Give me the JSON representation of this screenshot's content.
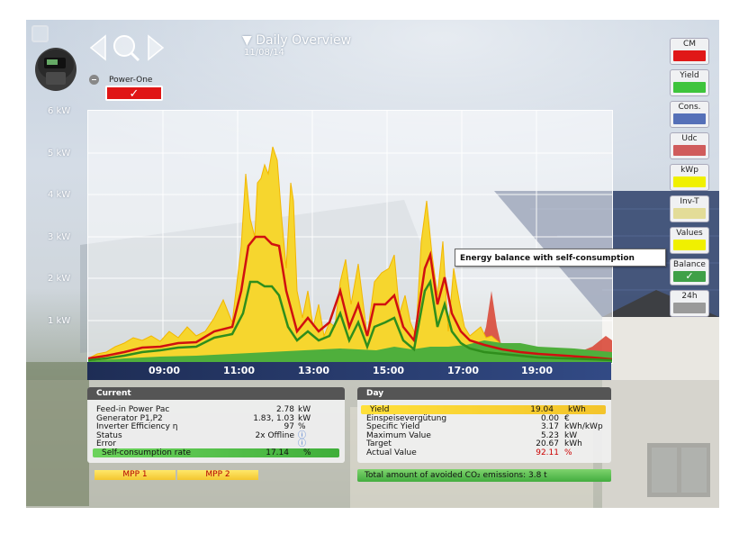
{
  "header": {
    "title": "Daily Overview",
    "date": "11/08/14",
    "inverter_label": "Power-One",
    "inverter_check": "✓"
  },
  "y_axis": [
    "6 kW",
    "5 kW",
    "4 kW",
    "3 kW",
    "2 kW",
    "1 kW"
  ],
  "x_axis": [
    "09:00",
    "11:00",
    "13:00",
    "15:00",
    "17:00",
    "19:00"
  ],
  "right_buttons": [
    {
      "label": "CM",
      "color": "#e01818"
    },
    {
      "label": "Yield",
      "color": "#3ec43c"
    },
    {
      "label": "Cons.",
      "color": "#5570b8"
    },
    {
      "label": "Udc",
      "color": "#d05c5c"
    },
    {
      "label": "kWp",
      "color": "#f0f000"
    },
    {
      "label": "Inv-T",
      "color": "#e3dc98"
    },
    {
      "label": "Values",
      "color": "#f0f000"
    },
    {
      "label": "Balance",
      "color": "#3fa048",
      "check": "✓"
    },
    {
      "label": "24h",
      "color": "#9a9a9a"
    }
  ],
  "tooltip": "Energy balance with self-consumption",
  "current": {
    "title": "Current",
    "rows": [
      {
        "k": "Feed-in Power Pac",
        "v": "2.78",
        "u": "kW"
      },
      {
        "k": "Generator P1,P2",
        "v": "1.83, 1.03",
        "u": "kW"
      },
      {
        "k": "Inverter Efficiency η",
        "v": "97",
        "u": "%"
      },
      {
        "k": "Status",
        "v": "2x Offline",
        "u": "ⓘ"
      },
      {
        "k": "Error",
        "v": "",
        "u": "ⓘ"
      },
      {
        "k": "Self-consumption rate",
        "v": "17.14",
        "u": "%"
      }
    ],
    "mpp1": "MPP 1",
    "mpp2": "MPP 2"
  },
  "day": {
    "title": "Day",
    "rows": [
      {
        "k": "Yield",
        "v": "19.04",
        "u": "kWh"
      },
      {
        "k": "Einspeisevergütung",
        "v": "0.00",
        "u": "€"
      },
      {
        "k": "Specific Yield",
        "v": "3.17",
        "u": "kWh/kWp"
      },
      {
        "k": "Maximum Value",
        "v": "5.23",
        "u": "kW"
      },
      {
        "k": "Target",
        "v": "20.67",
        "u": "kWh"
      },
      {
        "k": "Actual Value",
        "v": "92.11",
        "u": "%"
      }
    ],
    "co2": "Total amount of avoided CO₂   emissions: 3.8 t"
  }
}
